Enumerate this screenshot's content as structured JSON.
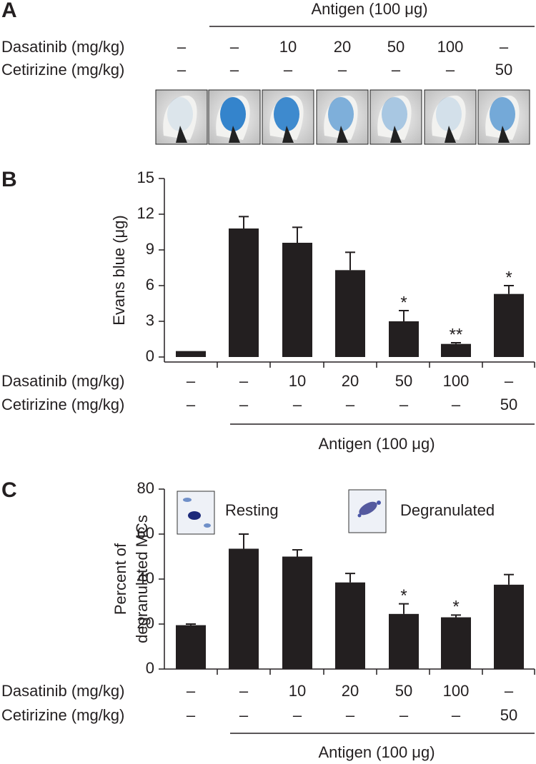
{
  "panel_a": {
    "label": "A",
    "antigen": "Antigen (100 μg)",
    "rows": [
      {
        "name": "Dasatinib (mg/kg)",
        "cells": [
          "–",
          "–",
          "10",
          "20",
          "50",
          "100",
          "–"
        ]
      },
      {
        "name": "Cetirizine (mg/kg)",
        "cells": [
          "–",
          "–",
          "–",
          "–",
          "–",
          "–",
          "50"
        ]
      }
    ]
  },
  "chart_data": [
    {
      "type": "bar",
      "panel_label": "B",
      "ylabel": [
        "Evans blue (μg)"
      ],
      "values": [
        0.5,
        10.8,
        9.6,
        7.3,
        3.0,
        1.1,
        5.3
      ],
      "errors": [
        null,
        1.0,
        1.3,
        1.5,
        0.9,
        0.1,
        0.7
      ],
      "significance": [
        null,
        null,
        null,
        null,
        "*",
        "**",
        "*"
      ],
      "color": "#231f20",
      "ylim": [
        0,
        15
      ],
      "yticks": [
        0,
        3,
        6,
        9,
        12,
        15
      ],
      "rows": [
        {
          "name": "Dasatinib (mg/kg)",
          "cells": [
            "–",
            "–",
            "10",
            "20",
            "50",
            "100",
            "–"
          ]
        },
        {
          "name": "Cetirizine (mg/kg)",
          "cells": [
            "–",
            "–",
            "–",
            "–",
            "–",
            "–",
            "50"
          ]
        }
      ],
      "antigen": "Antigen (100 μg)"
    },
    {
      "type": "bar",
      "panel_label": "C",
      "ylabel": [
        "Percent of",
        "degranulated MCs"
      ],
      "values": [
        19.5,
        53.5,
        50,
        38.5,
        24.5,
        23,
        37.5
      ],
      "errors": [
        0.5,
        6.5,
        3,
        4,
        4.5,
        1,
        4.5
      ],
      "significance": [
        null,
        null,
        null,
        null,
        "*",
        "*",
        null
      ],
      "insets": [
        "Resting",
        "Degranulated"
      ],
      "color": "#231f20",
      "ylim": [
        0,
        80
      ],
      "yticks": [
        0,
        20,
        40,
        60,
        80
      ],
      "rows": [
        {
          "name": "Dasatinib (mg/kg)",
          "cells": [
            "–",
            "–",
            "10",
            "20",
            "50",
            "100",
            "–"
          ]
        },
        {
          "name": "Cetirizine (mg/kg)",
          "cells": [
            "–",
            "–",
            "–",
            "–",
            "–",
            "–",
            "50"
          ]
        }
      ],
      "antigen": "Antigen (100 μg)"
    }
  ]
}
